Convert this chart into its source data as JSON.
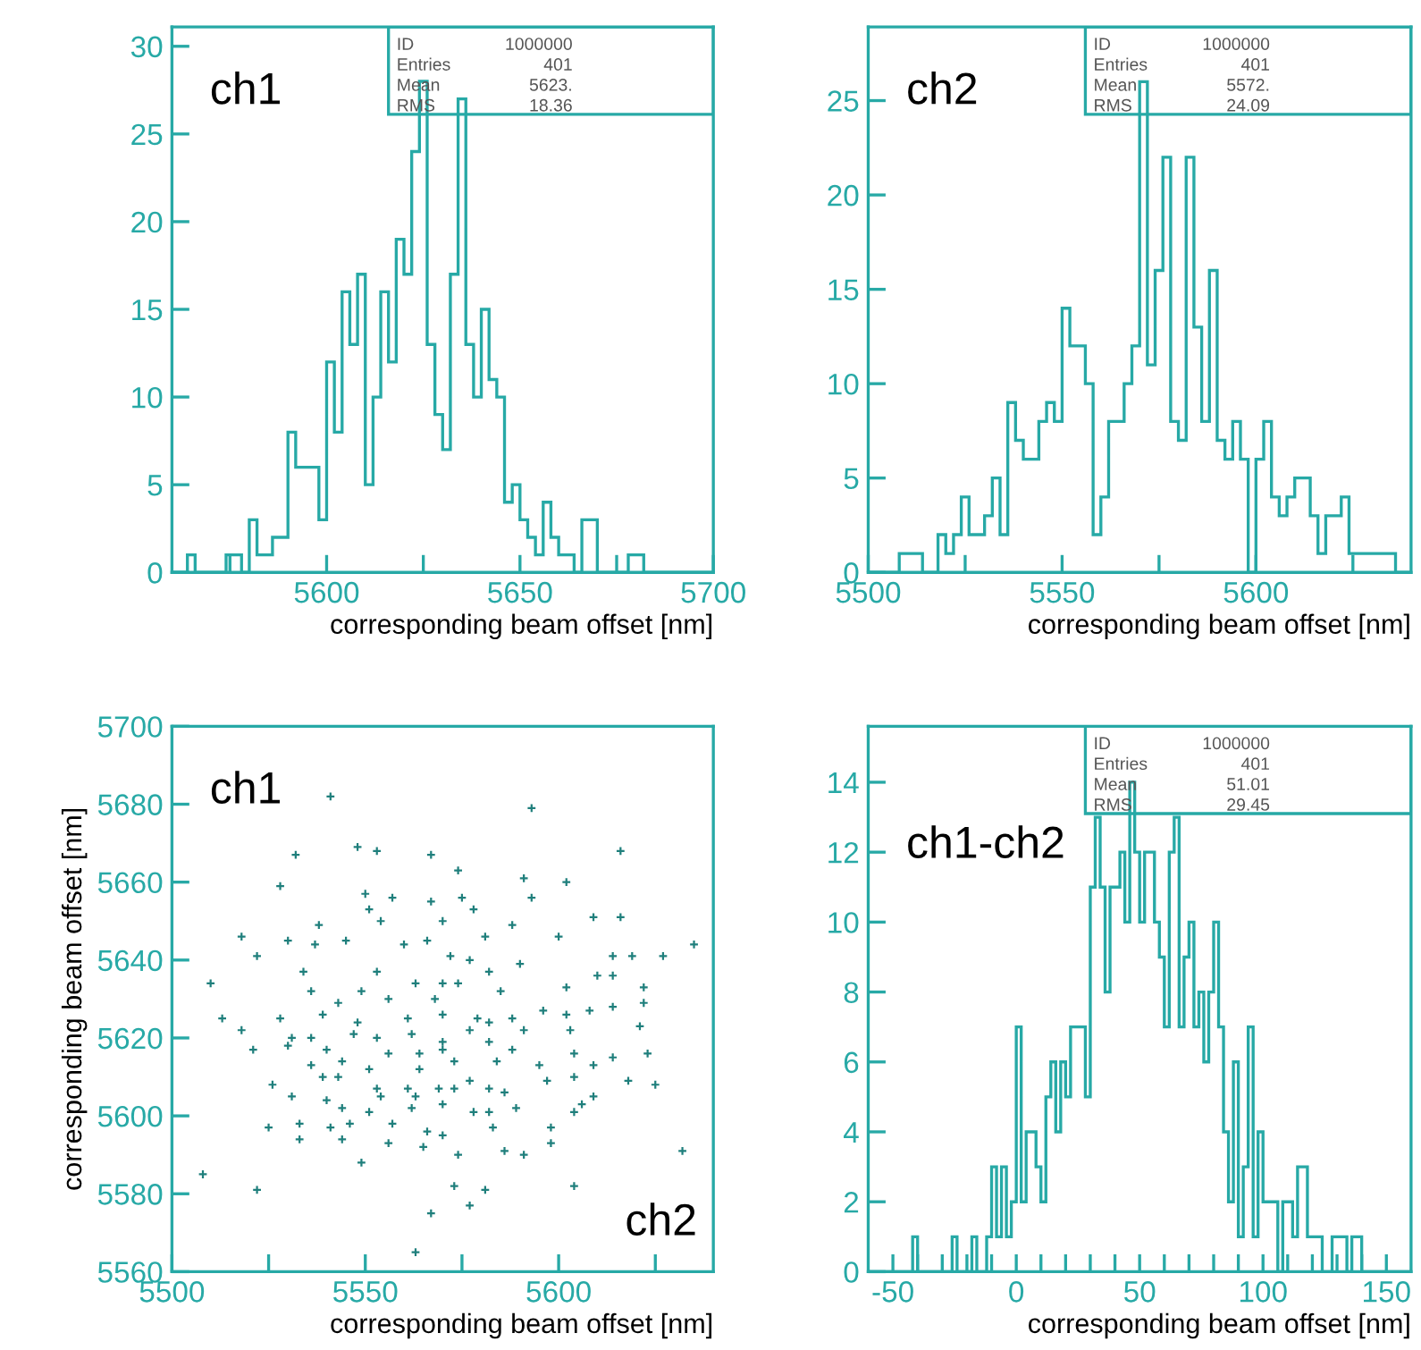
{
  "chart_data": [
    {
      "type": "histogram",
      "title": "ch1",
      "xlabel": "corresponding beam offset [nm]",
      "color": "#27a9a6",
      "annotations": [
        "ID 1000000",
        "Entries 401",
        "Mean 5623.",
        "RMS 18.36"
      ],
      "bins": [
        5560,
        5562,
        5564,
        5566,
        5568,
        5570,
        5572,
        5574,
        5576,
        5578,
        5580,
        5582,
        5584,
        5586,
        5588,
        5590,
        5592,
        5594,
        5596,
        5598,
        5600,
        5602,
        5604,
        5606,
        5608,
        5610,
        5612,
        5614,
        5616,
        5618,
        5620,
        5622,
        5624,
        5626,
        5628,
        5630,
        5632,
        5634,
        5636,
        5638,
        5640,
        5642,
        5644,
        5646,
        5648,
        5650,
        5652,
        5654,
        5656,
        5658,
        5660,
        5662,
        5664,
        5666,
        5668,
        5670,
        5672,
        5674,
        5676,
        5678,
        5680,
        5682,
        5684,
        5686,
        5688,
        5690,
        5692,
        5694,
        5696,
        5698,
        5700
      ],
      "values": [
        0,
        0,
        1,
        0,
        0,
        0,
        0,
        1,
        1,
        0,
        3,
        1,
        1,
        2,
        2,
        8,
        6,
        6,
        6,
        3,
        12,
        8,
        16,
        13,
        17,
        5,
        10,
        16,
        12,
        19,
        17,
        24,
        28,
        13,
        9,
        7,
        17,
        27,
        13,
        10,
        15,
        11,
        10,
        4,
        5,
        3,
        2,
        1,
        4,
        2,
        1,
        1,
        0,
        3,
        3,
        0,
        0,
        0,
        0,
        1,
        1,
        0,
        0,
        0,
        0,
        0,
        0,
        0,
        0,
        0
      ],
      "xlim": [
        5560,
        5700
      ],
      "ylim": [
        0,
        31.1
      ],
      "xticks": [
        {
          "value": 5575,
          "label": null
        },
        5600,
        {
          "value": 5625,
          "label": null
        },
        5650,
        {
          "value": 5675,
          "label": null
        },
        5700
      ],
      "yticks": [
        0,
        5,
        10,
        15,
        20,
        25,
        30
      ],
      "grid": false
    },
    {
      "type": "histogram",
      "title": "ch2",
      "xlabel": "corresponding beam offset [nm]",
      "color": "#27a9a6",
      "annotations": [
        "ID 1000000",
        "Entries 401",
        "Mean 5572.",
        "RMS 24.09"
      ],
      "bins": [
        5500,
        5502,
        5504,
        5506,
        5508,
        5510,
        5512,
        5514,
        5516,
        5518,
        5520,
        5522,
        5524,
        5526,
        5528,
        5530,
        5532,
        5534,
        5536,
        5538,
        5540,
        5542,
        5544,
        5546,
        5548,
        5550,
        5552,
        5554,
        5556,
        5558,
        5560,
        5562,
        5564,
        5566,
        5568,
        5570,
        5572,
        5574,
        5576,
        5578,
        5580,
        5582,
        5584,
        5586,
        5588,
        5590,
        5592,
        5594,
        5596,
        5598,
        5600,
        5602,
        5604,
        5606,
        5608,
        5610,
        5612,
        5614,
        5616,
        5618,
        5620,
        5622,
        5624,
        5626,
        5628,
        5630,
        5632,
        5634,
        5636,
        5638,
        5640
      ],
      "values": [
        0,
        0,
        0,
        0,
        1,
        1,
        1,
        0,
        0,
        2,
        1,
        2,
        4,
        2,
        2,
        3,
        5,
        2,
        9,
        7,
        6,
        6,
        8,
        9,
        8,
        14,
        12,
        12,
        10,
        2,
        4,
        8,
        8,
        10,
        12,
        26,
        11,
        16,
        22,
        8,
        7,
        22,
        13,
        8,
        16,
        7,
        6,
        8,
        6,
        0,
        6,
        8,
        4,
        3,
        4,
        5,
        5,
        3,
        1,
        3,
        3,
        4,
        1,
        1,
        1,
        1,
        1,
        1,
        0,
        0
      ],
      "xlim": [
        5500,
        5640
      ],
      "ylim": [
        0,
        28.9
      ],
      "xticks": [
        5500,
        {
          "value": 5525,
          "label": null
        },
        5550,
        {
          "value": 5575,
          "label": null
        },
        5600,
        {
          "value": 5625,
          "label": null
        }
      ],
      "yticks": [
        0,
        5,
        10,
        15,
        20,
        25
      ],
      "grid": false
    },
    {
      "type": "scatter",
      "title": "ch1",
      "xlabel": "corresponding beam offset [nm]",
      "ylabel": "corresponding beam offset [nm]",
      "color": "#1f7f7c",
      "marker": "cross",
      "annotations": [
        "ch2"
      ],
      "x": [
        5541,
        5593,
        5616,
        5548,
        5553,
        5532,
        5567,
        5574,
        5591,
        5602,
        5528,
        5550,
        5557,
        5567,
        5575,
        5593,
        5551,
        5578,
        5609,
        5616,
        5538,
        5554,
        5570,
        5588,
        5518,
        5530,
        5537,
        5545,
        5560,
        5566,
        5581,
        5600,
        5635,
        5522,
        5572,
        5577,
        5590,
        5614,
        5619,
        5627,
        5510,
        5534,
        5553,
        5582,
        5570,
        5610,
        5614,
        5602,
        5536,
        5549,
        5563,
        5574,
        5585,
        5622,
        5543,
        5556,
        5568,
        5622,
        5513,
        5528,
        5539,
        5548,
        5561,
        5570,
        5579,
        5588,
        5596,
        5602,
        5608,
        5614,
        5518,
        5531,
        5536,
        5547,
        5553,
        5562,
        5570,
        5577,
        5582,
        5591,
        5603,
        5621,
        5521,
        5530,
        5540,
        5556,
        5564,
        5570,
        5582,
        5588,
        5604,
        5614,
        5623,
        5536,
        5544,
        5551,
        5564,
        5573,
        5584,
        5595,
        5609,
        5526,
        5539,
        5543,
        5553,
        5561,
        5569,
        5573,
        5577,
        5582,
        5597,
        5604,
        5618,
        5625,
        5531,
        5540,
        5554,
        5563,
        5570,
        5586,
        5606,
        5609,
        5544,
        5551,
        5562,
        5578,
        5582,
        5589,
        5604,
        5525,
        5533,
        5541,
        5546,
        5557,
        5566,
        5583,
        5598,
        5533,
        5544,
        5556,
        5565,
        5570,
        5574,
        5586,
        5591,
        5632,
        5549,
        5598,
        5508,
        5522,
        5573,
        5581,
        5604,
        5577,
        5567,
        5563
      ],
      "values": [
        5682,
        5679,
        5668,
        5669,
        5668,
        5667,
        5667,
        5663,
        5661,
        5660,
        5659,
        5657,
        5656,
        5655,
        5656,
        5656,
        5653,
        5653,
        5651,
        5651,
        5649,
        5650,
        5650,
        5649,
        5646,
        5645,
        5644,
        5645,
        5644,
        5645,
        5646,
        5646,
        5644,
        5641,
        5641,
        5640,
        5639,
        5641,
        5641,
        5641,
        5634,
        5637,
        5637,
        5637,
        5634,
        5636,
        5636,
        5633,
        5632,
        5632,
        5634,
        5634,
        5632,
        5633,
        5629,
        5630,
        5630,
        5629,
        5625,
        5625,
        5626,
        5624,
        5625,
        5626,
        5625,
        5625,
        5627,
        5626,
        5627,
        5628,
        5622,
        5620,
        5620,
        5621,
        5620,
        5621,
        5619,
        5622,
        5624,
        5622,
        5622,
        5623,
        5617,
        5618,
        5617,
        5616,
        5616,
        5617,
        5619,
        5617,
        5616,
        5615,
        5616,
        5613,
        5614,
        5612,
        5612,
        5614,
        5614,
        5613,
        5613,
        5608,
        5610,
        5610,
        5607,
        5607,
        5607,
        5607,
        5609,
        5607,
        5609,
        5610,
        5609,
        5608,
        5605,
        5604,
        5605,
        5605,
        5603,
        5606,
        5603,
        5605,
        5602,
        5601,
        5602,
        5601,
        5601,
        5602,
        5601,
        5597,
        5598,
        5597,
        5598,
        5598,
        5596,
        5597,
        5597,
        5594,
        5594,
        5593,
        5592,
        5595,
        5590,
        5591,
        5590,
        5591,
        5588,
        5593,
        5585,
        5581,
        5582,
        5581,
        5582,
        5577,
        5575,
        5565
      ],
      "xlim": [
        5500,
        5640
      ],
      "ylim": [
        5560,
        5700
      ],
      "xticks": [
        5500,
        {
          "value": 5525,
          "label": null
        },
        5550,
        {
          "value": 5575,
          "label": null
        },
        5600,
        {
          "value": 5625,
          "label": null
        }
      ],
      "yticks": [
        5560,
        5580,
        5600,
        5620,
        5640,
        5660,
        5680,
        5700
      ],
      "grid": false
    },
    {
      "type": "histogram",
      "title": "ch1-ch2",
      "xlabel": "corresponding beam offset [nm]",
      "color": "#27a9a6",
      "annotations": [
        "ID 1000000",
        "Entries 401",
        "Mean 51.01",
        "RMS 29.45"
      ],
      "bins": [
        -60,
        -58,
        -56,
        -54,
        -52,
        -50,
        -48,
        -46,
        -44,
        -42,
        -40,
        -38,
        -36,
        -34,
        -32,
        -30,
        -28,
        -26,
        -24,
        -22,
        -20,
        -18,
        -16,
        -14,
        -12,
        -10,
        -8,
        -6,
        -4,
        -2,
        0,
        2,
        4,
        6,
        8,
        10,
        12,
        14,
        16,
        18,
        20,
        22,
        24,
        26,
        28,
        30,
        32,
        34,
        36,
        38,
        40,
        42,
        44,
        46,
        48,
        50,
        52,
        54,
        56,
        58,
        60,
        62,
        64,
        66,
        68,
        70,
        72,
        74,
        76,
        78,
        80,
        82,
        84,
        86,
        88,
        90,
        92,
        94,
        96,
        98,
        100,
        102,
        104,
        106,
        108,
        110,
        112,
        114,
        116,
        118,
        120,
        122,
        124,
        126,
        128,
        130,
        132,
        134,
        136,
        138,
        140,
        142,
        144,
        146,
        148,
        150,
        152,
        154,
        156,
        158,
        160
      ],
      "values": [
        0,
        0,
        0,
        0,
        0,
        0,
        0,
        0,
        0,
        1,
        0,
        0,
        0,
        0,
        0,
        0,
        0,
        1,
        0,
        0,
        0,
        1,
        0,
        0,
        1,
        3,
        1,
        3,
        1,
        2,
        7,
        2,
        4,
        4,
        3,
        2,
        5,
        6,
        4,
        6,
        5,
        7,
        7,
        7,
        5,
        11,
        13,
        11,
        8,
        11,
        11,
        12,
        10,
        14,
        12,
        10,
        12,
        12,
        10,
        9,
        7,
        12,
        13,
        7,
        9,
        10,
        7,
        8,
        6,
        8,
        10,
        7,
        4,
        2,
        6,
        1,
        3,
        7,
        1,
        4,
        2,
        2,
        2,
        0,
        2,
        2,
        1,
        3,
        3,
        1,
        1,
        1,
        0,
        0,
        1,
        1,
        1,
        0,
        1,
        1,
        0,
        0,
        0,
        0,
        0,
        0,
        0,
        0,
        0,
        0
      ],
      "xlim": [
        -60,
        160
      ],
      "ylim": [
        0,
        15.6
      ],
      "xticks": [
        -50,
        {
          "value": -40,
          "label": null
        },
        {
          "value": -30,
          "label": null
        },
        {
          "value": -20,
          "label": null
        },
        {
          "value": -10,
          "label": null
        },
        0,
        {
          "value": 10,
          "label": null
        },
        {
          "value": 20,
          "label": null
        },
        {
          "value": 30,
          "label": null
        },
        {
          "value": 40,
          "label": null
        },
        50,
        {
          "value": 60,
          "label": null
        },
        {
          "value": 70,
          "label": null
        },
        {
          "value": 80,
          "label": null
        },
        {
          "value": 90,
          "label": null
        },
        100,
        {
          "value": 110,
          "label": null
        },
        {
          "value": 120,
          "label": null
        },
        {
          "value": 130,
          "label": null
        },
        {
          "value": 140,
          "label": null
        },
        150
      ],
      "yticks": [
        0,
        2,
        4,
        6,
        8,
        10,
        12,
        14
      ],
      "grid": false
    }
  ]
}
